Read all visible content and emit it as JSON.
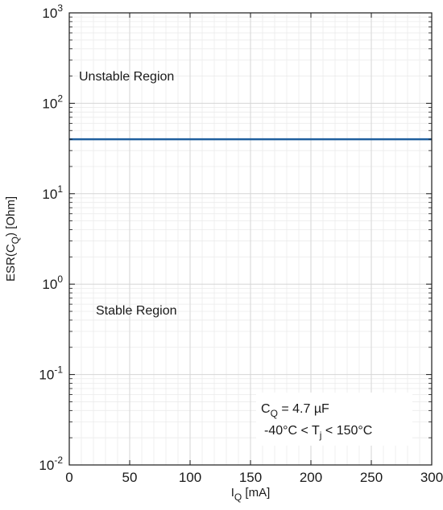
{
  "chart_data": {
    "type": "line",
    "title": "",
    "xlabel": {
      "main": "I",
      "sub": "Q",
      "rest": " [mA]"
    },
    "ylabel": {
      "main": "ESR(C",
      "sub": "Q",
      "rest": ") [Ohm]"
    },
    "xlim": [
      0,
      300
    ],
    "ylim": [
      0.01,
      1000
    ],
    "yscale": "log",
    "grid": true,
    "x_ticks": [
      0,
      50,
      100,
      150,
      200,
      250,
      300
    ],
    "y_ticks": [
      {
        "value": 0.01,
        "base": "10",
        "exp": "-2"
      },
      {
        "value": 0.1,
        "base": "10",
        "exp": "-1"
      },
      {
        "value": 1,
        "base": "10",
        "exp": "0"
      },
      {
        "value": 10,
        "base": "10",
        "exp": "1"
      },
      {
        "value": 100,
        "base": "10",
        "exp": "2"
      },
      {
        "value": 1000,
        "base": "10",
        "exp": "3"
      }
    ],
    "series": [
      {
        "x": [
          0,
          300
        ],
        "y": [
          40,
          40
        ],
        "color": "#1f5f9e"
      }
    ],
    "annotations": {
      "unstable": "Unstable Region",
      "stable": "Stable Region",
      "capacitance": {
        "main": "C",
        "sub": "Q",
        "rest": " = 4.7 µF"
      },
      "temperature": {
        "pre": "-40°C < T",
        "sub": "j",
        "post": " < 150°C"
      }
    }
  }
}
